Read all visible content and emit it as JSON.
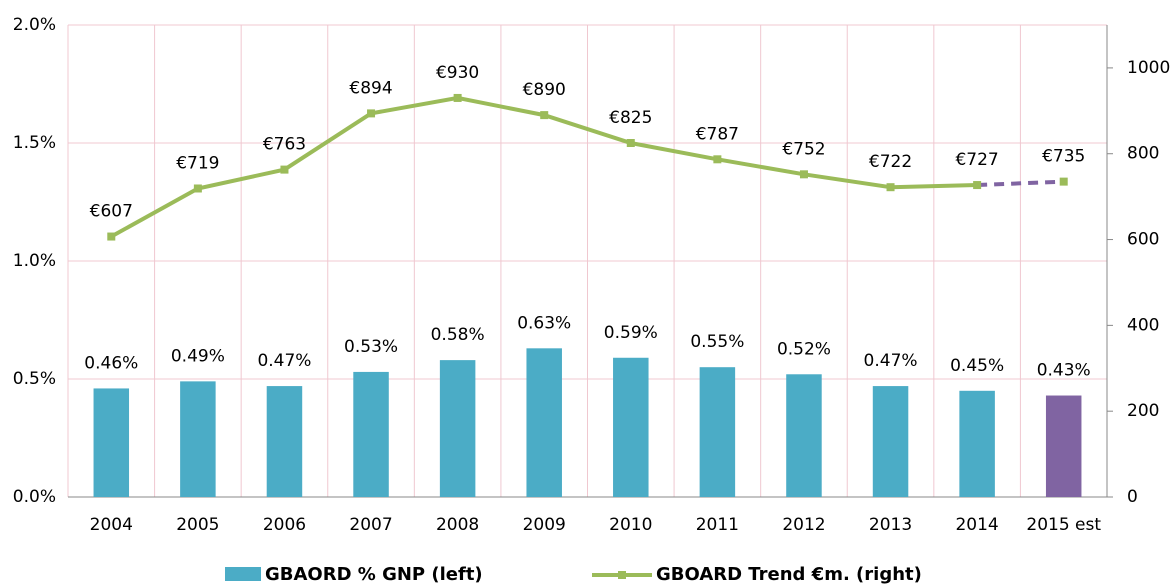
{
  "chart_data": {
    "type": "bar-line",
    "categories": [
      "2004",
      "2005",
      "2006",
      "2007",
      "2008",
      "2009",
      "2010",
      "2011",
      "2012",
      "2013",
      "2014",
      "2015 est"
    ],
    "series": [
      {
        "name": "GBAORD % GNP (left)",
        "type": "bar",
        "color": "#4bacc6",
        "colors": [
          "#4bacc6",
          "#4bacc6",
          "#4bacc6",
          "#4bacc6",
          "#4bacc6",
          "#4bacc6",
          "#4bacc6",
          "#4bacc6",
          "#4bacc6",
          "#4bacc6",
          "#4bacc6",
          "#8064a2"
        ],
        "values": [
          0.46,
          0.49,
          0.47,
          0.53,
          0.58,
          0.63,
          0.59,
          0.55,
          0.52,
          0.47,
          0.45,
          0.43
        ],
        "value_labels": [
          "0.46%",
          "0.49%",
          "0.47%",
          "0.53%",
          "0.58%",
          "0.63%",
          "0.59%",
          "0.55%",
          "0.52%",
          "0.47%",
          "0.45%",
          "0.43%"
        ]
      },
      {
        "name": "GBOARD Trend €m. (right)",
        "type": "line",
        "axis": "y2",
        "color": "#9bbb59",
        "estimate_color": "#8064a2",
        "values": [
          607,
          719,
          763,
          894,
          930,
          890,
          825,
          787,
          752,
          722,
          727,
          735
        ],
        "value_labels": [
          "€607",
          "€719",
          "€763",
          "€894",
          "€930",
          "€890",
          "€825",
          "€787",
          "€752",
          "€722",
          "€727",
          "€735"
        ]
      }
    ],
    "ylim": [
      0,
      2
    ],
    "yticks": [
      {
        "value": 0,
        "label": "0.0%"
      },
      {
        "value": 0.5,
        "label": "0.5%"
      },
      {
        "value": 1,
        "label": "1.0%"
      },
      {
        "value": 1.5,
        "label": "1.5%"
      },
      {
        "value": 2,
        "label": "2.0%"
      }
    ],
    "y2lim": [
      0,
      1100
    ],
    "y2ticks": [
      0,
      200,
      400,
      600,
      800,
      1000
    ],
    "grid": true,
    "legend": "bottom"
  }
}
